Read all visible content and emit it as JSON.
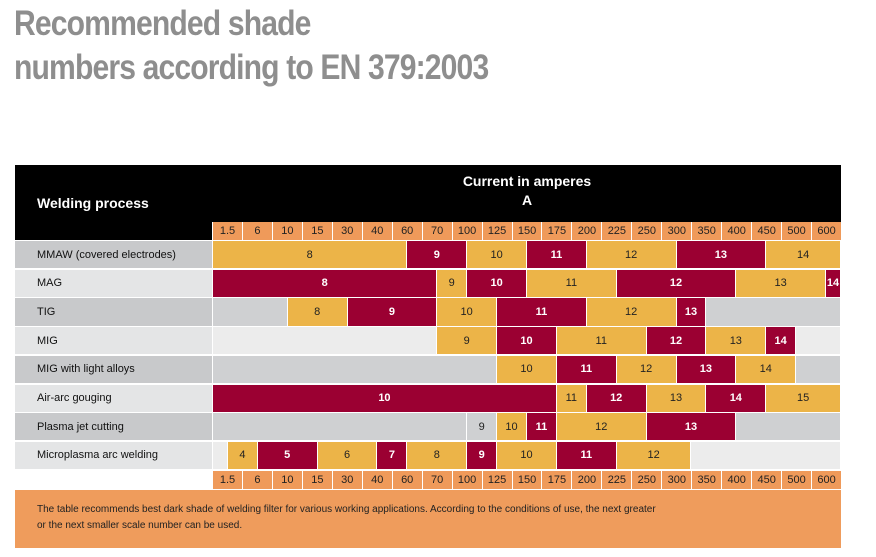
{
  "title_line1": "Recommended shade",
  "title_line2": "numbers according to EN 379:2003",
  "header": {
    "process_label": "Welding process",
    "current_label": "Current in amperes",
    "current_unit": "A"
  },
  "scale": [
    "1.5",
    "6",
    "10",
    "15",
    "30",
    "40",
    "60",
    "70",
    "100",
    "125",
    "150",
    "175",
    "200",
    "225",
    "250",
    "300",
    "350",
    "400",
    "450",
    "500",
    "600"
  ],
  "colors": {
    "light_shade": "#ecb448",
    "dark_shade": "#9b0032",
    "scale": "#ef9a5a",
    "not_applicable": "#cfd0d2",
    "title": "#8e8e8e"
  },
  "rows": [
    {
      "process": "MMAW (covered electrodes)",
      "shades": [
        "8",
        "9",
        "10",
        "11",
        "12",
        "13",
        "14"
      ]
    },
    {
      "process": "MAG",
      "shades": [
        "8",
        "9",
        "10",
        "11",
        "12",
        "13",
        "14"
      ]
    },
    {
      "process": "TIG",
      "shades": [
        "",
        "8",
        "9",
        "10",
        "11",
        "12",
        "13",
        ""
      ]
    },
    {
      "process": "MIG",
      "shades": [
        "",
        "9",
        "10",
        "11",
        "12",
        "13",
        "14",
        ""
      ]
    },
    {
      "process": "MIG with light alloys",
      "shades": [
        "",
        "10",
        "11",
        "12",
        "13",
        "14",
        ""
      ]
    },
    {
      "process": "Air-arc gouging",
      "shades": [
        "10",
        "11",
        "12",
        "13",
        "14",
        "15"
      ]
    },
    {
      "process": "Plasma jet cutting",
      "shades": [
        "",
        "9",
        "10",
        "11",
        "12",
        "13",
        ""
      ]
    },
    {
      "process": "Microplasma arc welding",
      "shades": [
        "",
        "4",
        "5",
        "6",
        "7",
        "8",
        "9",
        "10",
        "11",
        "12",
        ""
      ]
    }
  ],
  "footnote_line1": "The table recommends best dark shade of welding filter for various working applications. According to the conditions of use, the next greater",
  "footnote_line2": "or the next smaller scale number can be used."
}
